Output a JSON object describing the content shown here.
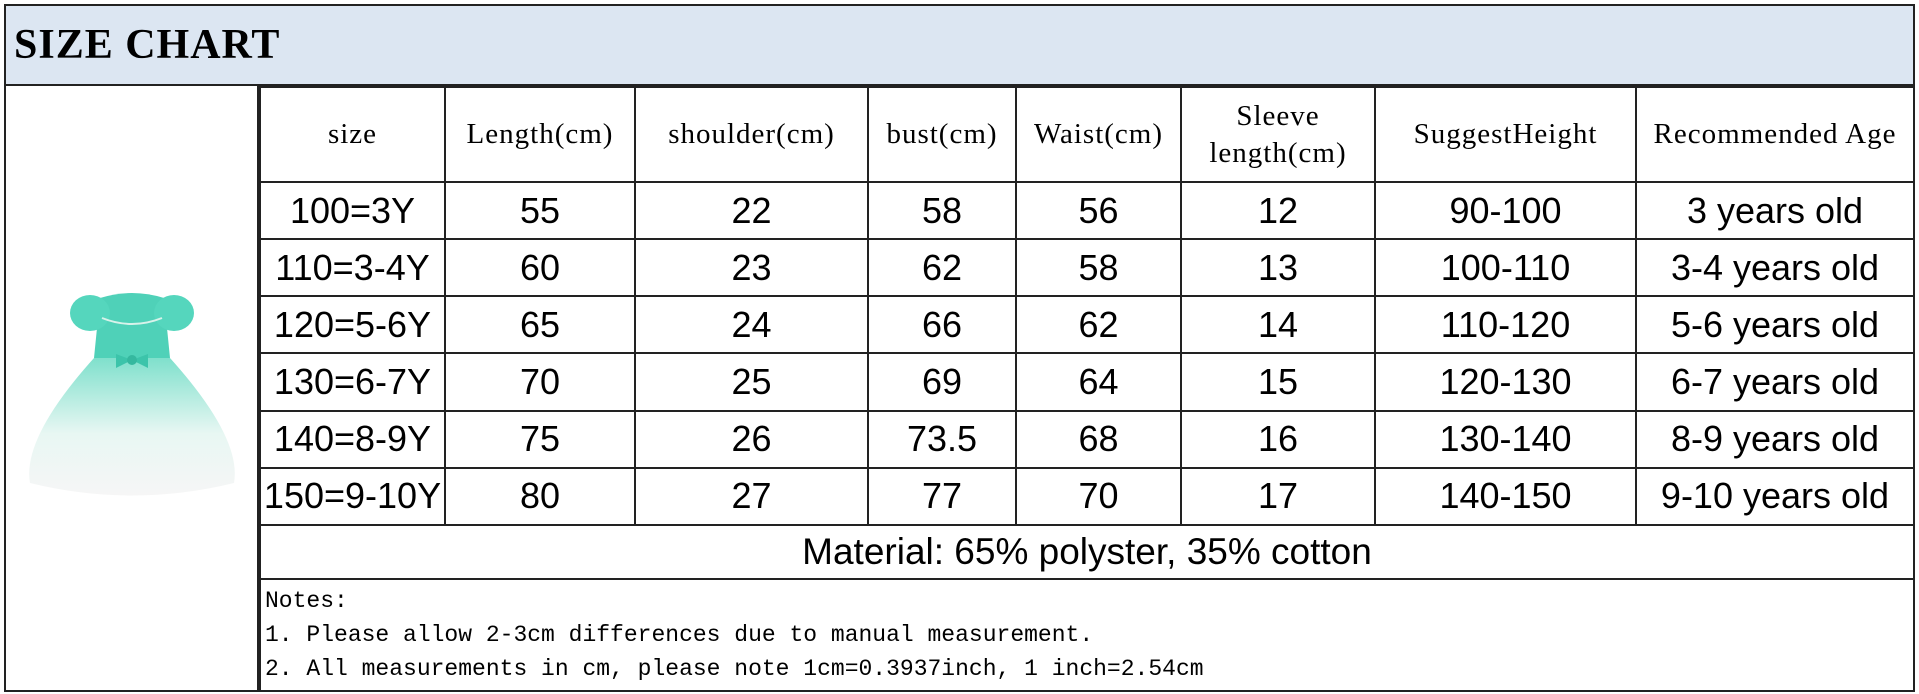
{
  "title": "SIZE CHART",
  "table": {
    "headers": [
      "size",
      "Length(cm)",
      "shoulder(cm)",
      "bust(cm)",
      "Waist(cm)",
      "Sleeve length(cm)",
      "SuggestHeight",
      "Recommended Age"
    ],
    "rows": [
      [
        "100=3Y",
        "55",
        "22",
        "58",
        "56",
        "12",
        "90-100",
        "3 years old"
      ],
      [
        "110=3-4Y",
        "60",
        "23",
        "62",
        "58",
        "13",
        "100-110",
        "3-4 years old"
      ],
      [
        "120=5-6Y",
        "65",
        "24",
        "66",
        "62",
        "14",
        "110-120",
        "5-6 years old"
      ],
      [
        "130=6-7Y",
        "70",
        "25",
        "69",
        "64",
        "15",
        "120-130",
        "6-7 years old"
      ],
      [
        "140=8-9Y",
        "75",
        "26",
        "73.5",
        "68",
        "16",
        "130-140",
        "8-9 years old"
      ],
      [
        "150=9-10Y",
        "80",
        "27",
        "77",
        "70",
        "17",
        "140-150",
        "9-10 years old"
      ]
    ]
  },
  "material": "Material: 65% polyster, 35% cotton",
  "notes": [
    "Notes:",
    "1. Please allow 2-3cm differences due to manual measurement.",
    "2. All measurements in cm, please note 1cm=0.3937inch, 1 inch=2.54cm"
  ]
}
